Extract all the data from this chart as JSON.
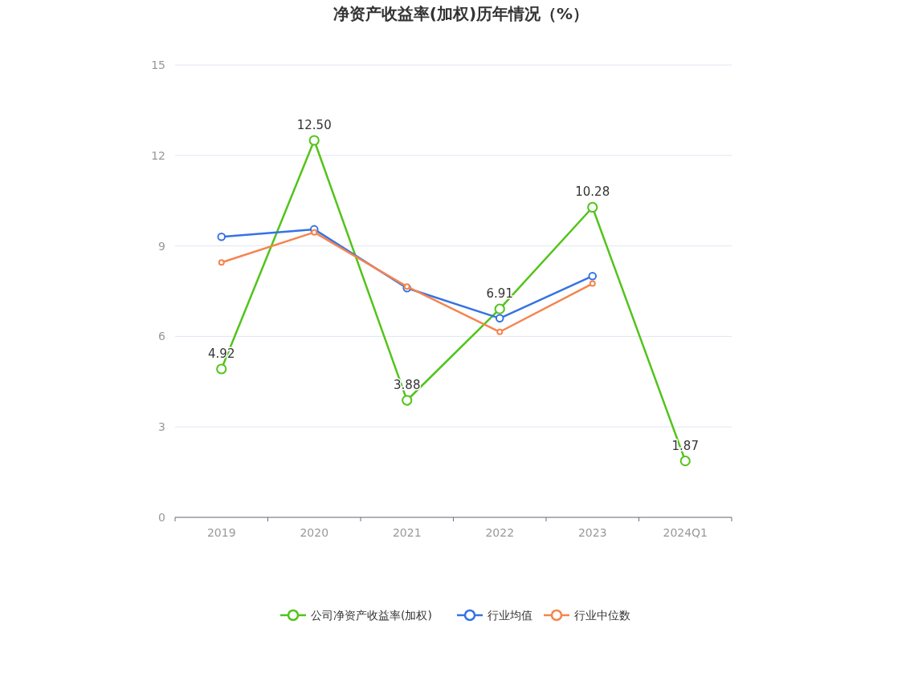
{
  "chart_data": {
    "type": "line",
    "title": "净资产收益率(加权)历年情况（%）",
    "categories": [
      "2019",
      "2020",
      "2021",
      "2022",
      "2023",
      "2024Q1"
    ],
    "series": [
      {
        "name": "公司净资产收益率(加权)",
        "color": "#52c41a",
        "values": [
          4.92,
          12.5,
          3.88,
          6.91,
          10.28,
          1.87
        ],
        "value_labels": [
          "4.92",
          "12.50",
          "3.88",
          "6.91",
          "10.28",
          "1.87"
        ]
      },
      {
        "name": "行业均值",
        "color": "#3573e3",
        "values": [
          9.3,
          9.55,
          7.6,
          6.6,
          8.0,
          null
        ]
      },
      {
        "name": "行业中位数",
        "color": "#f5844f",
        "values": [
          8.45,
          9.45,
          7.65,
          6.15,
          7.75,
          null
        ]
      }
    ],
    "ylim": [
      0,
      15
    ],
    "yticks": [
      0,
      3,
      6,
      9,
      12,
      15
    ],
    "grid": "y",
    "legend": "bottom",
    "marker": "circle"
  }
}
